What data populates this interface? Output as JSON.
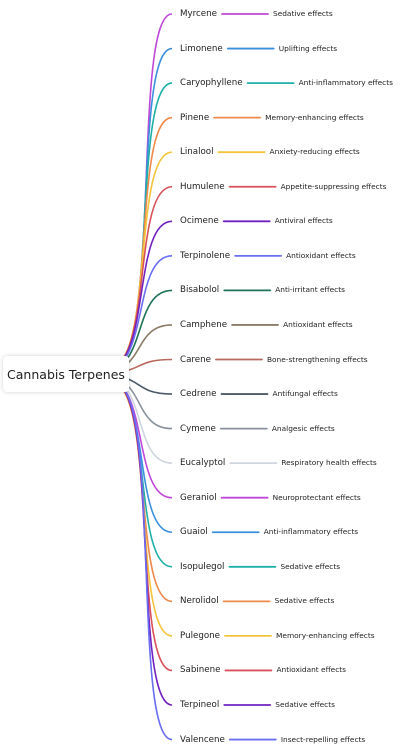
{
  "root": {
    "label": "Cannabis Terpenes"
  },
  "colors": {
    "root_border": "#e0e0e0"
  },
  "branches": [
    {
      "terpene": "Myrcene",
      "effect": "Sedative effects",
      "color": "#c048d8"
    },
    {
      "terpene": "Limonene",
      "effect": "Uplifting effects",
      "color": "#3c8fdc"
    },
    {
      "terpene": "Caryophyllene",
      "effect": "Anti-inflammatory effects",
      "color": "#1fb0a8"
    },
    {
      "terpene": "Pinene",
      "effect": "Memory-enhancing effects",
      "color": "#ee8a4a"
    },
    {
      "terpene": "Linalool",
      "effect": "Anxiety-reducing effects",
      "color": "#f4c43c"
    },
    {
      "terpene": "Humulene",
      "effect": "Appetite-suppressing effects",
      "color": "#d9505a"
    },
    {
      "terpene": "Ocimene",
      "effect": "Antiviral effects",
      "color": "#7222c0"
    },
    {
      "terpene": "Terpinolene",
      "effect": "Antioxidant effects",
      "color": "#6a6ef0"
    },
    {
      "terpene": "Bisabolol",
      "effect": "Anti-irritant effects",
      "color": "#1d7355"
    },
    {
      "terpene": "Camphene",
      "effect": "Antioxidant effects",
      "color": "#8a7c66"
    },
    {
      "terpene": "Carene",
      "effect": "Bone-strengthening effects",
      "color": "#b86a5e"
    },
    {
      "terpene": "Cedrene",
      "effect": "Antifungal effects",
      "color": "#4c5a6a"
    },
    {
      "terpene": "Cymene",
      "effect": "Analgesic effects",
      "color": "#8a929c"
    },
    {
      "terpene": "Eucalyptol",
      "effect": "Respiratory health effects",
      "color": "#cfd5de"
    },
    {
      "terpene": "Geraniol",
      "effect": "Neuroprotectant effects",
      "color": "#c048d8"
    },
    {
      "terpene": "Guaiol",
      "effect": "Anti-inflammatory effects",
      "color": "#3c8fdc"
    },
    {
      "terpene": "Isopulegol",
      "effect": "Sedative effects",
      "color": "#1fb0a8"
    },
    {
      "terpene": "Nerolidol",
      "effect": "Sedative effects",
      "color": "#ee8a4a"
    },
    {
      "terpene": "Pulegone",
      "effect": "Memory-enhancing effects",
      "color": "#f4c43c"
    },
    {
      "terpene": "Sabinene",
      "effect": "Antioxidant effects",
      "color": "#d9505a"
    },
    {
      "terpene": "Terpineol",
      "effect": "Sedative effects",
      "color": "#7222c0"
    },
    {
      "terpene": "Valencene",
      "effect": "Insect-repelling effects",
      "color": "#6a6ef0"
    }
  ]
}
